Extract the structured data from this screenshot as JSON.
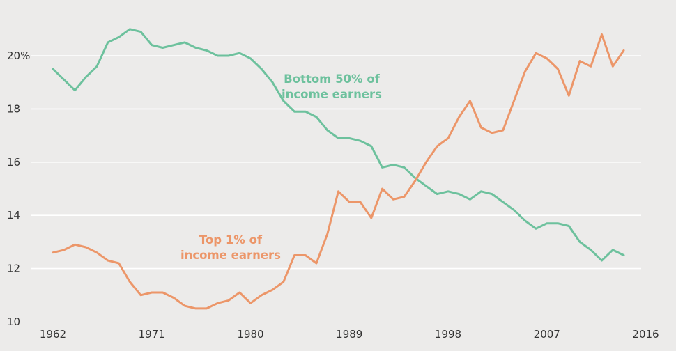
{
  "chart_data": {
    "type": "line",
    "title": "",
    "xlabel": "",
    "ylabel": "",
    "xlim": [
      1961,
      2016
    ],
    "ylim": [
      10,
      21.8
    ],
    "grid": true,
    "x_ticks": [
      1962,
      1971,
      1980,
      1989,
      1998,
      2007,
      2016
    ],
    "x_tick_labels": [
      "1962",
      "1971",
      "1980",
      "1989",
      "1998",
      "2007",
      "2016"
    ],
    "y_ticks": [
      10,
      12,
      14,
      16,
      18,
      20
    ],
    "y_tick_labels": [
      "10",
      "12",
      "14",
      "16",
      "18",
      "20%"
    ],
    "series": [
      {
        "name": "Bottom 50% of income earners",
        "label_lines": [
          "Bottom 50% of",
          "income earners"
        ],
        "color": "#6dc19d",
        "x": [
          1962,
          1963,
          1964,
          1965,
          1966,
          1967,
          1968,
          1969,
          1970,
          1971,
          1972,
          1973,
          1974,
          1975,
          1976,
          1977,
          1978,
          1979,
          1980,
          1981,
          1982,
          1983,
          1984,
          1985,
          1986,
          1987,
          1988,
          1989,
          1990,
          1991,
          1992,
          1993,
          1994,
          1995,
          1996,
          1997,
          1998,
          1999,
          2000,
          2001,
          2002,
          2003,
          2004,
          2005,
          2006,
          2007,
          2008,
          2009,
          2010,
          2011,
          2012,
          2013,
          2014
        ],
        "values": [
          19.5,
          19.1,
          18.7,
          19.2,
          19.6,
          20.5,
          20.7,
          21.0,
          20.9,
          20.4,
          20.3,
          20.4,
          20.5,
          20.3,
          20.2,
          20.0,
          20.0,
          20.1,
          19.9,
          19.5,
          19.0,
          18.3,
          17.9,
          17.9,
          17.7,
          17.2,
          16.9,
          16.9,
          16.8,
          16.6,
          15.8,
          15.9,
          15.8,
          15.4,
          15.1,
          14.8,
          14.9,
          14.8,
          14.6,
          14.9,
          14.8,
          14.5,
          14.2,
          13.8,
          13.5,
          13.7,
          13.7,
          13.6,
          13.0,
          12.7,
          12.3,
          12.7,
          12.5
        ]
      },
      {
        "name": "Top 1% of income earners",
        "label_lines": [
          "Top 1% of",
          "income earners"
        ],
        "color": "#ec9669",
        "x": [
          1962,
          1963,
          1964,
          1965,
          1966,
          1967,
          1968,
          1969,
          1970,
          1971,
          1972,
          1973,
          1974,
          1975,
          1976,
          1977,
          1978,
          1979,
          1980,
          1981,
          1982,
          1983,
          1984,
          1985,
          1986,
          1987,
          1988,
          1989,
          1990,
          1991,
          1992,
          1993,
          1994,
          1995,
          1996,
          1997,
          1998,
          1999,
          2000,
          2001,
          2002,
          2003,
          2004,
          2005,
          2006,
          2007,
          2008,
          2009,
          2010,
          2011,
          2012,
          2013,
          2014
        ],
        "values": [
          12.6,
          12.7,
          12.9,
          12.8,
          12.6,
          12.3,
          12.2,
          11.5,
          11.0,
          11.1,
          11.1,
          10.9,
          10.6,
          10.5,
          10.5,
          10.7,
          10.8,
          11.1,
          10.7,
          11.0,
          11.2,
          11.5,
          12.5,
          12.5,
          12.2,
          13.3,
          14.9,
          14.5,
          14.5,
          13.9,
          15.0,
          14.6,
          14.7,
          15.3,
          16.0,
          16.6,
          16.9,
          17.7,
          18.3,
          17.3,
          17.1,
          17.2,
          18.3,
          19.4,
          20.1,
          19.9,
          19.5,
          18.5,
          19.8,
          19.6,
          20.8,
          19.6,
          20.2
        ]
      }
    ]
  }
}
